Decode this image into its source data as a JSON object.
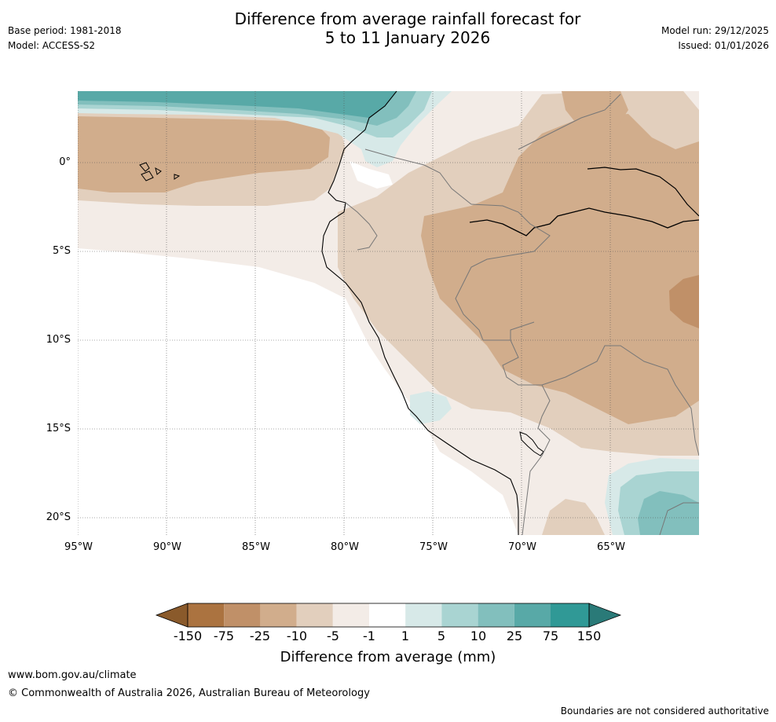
{
  "header": {
    "base_period": "Base period: 1981-2018",
    "model": "Model: ACCESS-S2",
    "title_line1": "Difference from average rainfall forecast for",
    "title_line2": "5 to 11 January 2026",
    "model_run": "Model run: 29/12/2025",
    "issued": "Issued: 01/01/2026"
  },
  "map": {
    "lat_labels": [
      "0°",
      "5°S",
      "10°S",
      "15°S",
      "20°S"
    ],
    "lon_labels": [
      "95°W",
      "90°W",
      "85°W",
      "80°W",
      "75°W",
      "70°W",
      "65°W"
    ]
  },
  "colorbar": {
    "title": "Difference from average (mm)",
    "tick_labels": [
      "-150",
      "-75",
      "-25",
      "-10",
      "-5",
      "-1",
      "1",
      "5",
      "10",
      "25",
      "75",
      "150"
    ],
    "colors": [
      "#8a5a2b",
      "#ab7340",
      "#c09068",
      "#d1ad8c",
      "#e2cfbd",
      "#f3ece7",
      "#ffffff",
      "#d7e9e8",
      "#a9d4d2",
      "#82bfbd",
      "#58a9a7",
      "#309996",
      "#2a7a78"
    ]
  },
  "footer": {
    "website": "www.bom.gov.au/climate",
    "copyright": "© Commonwealth of Australia 2026, Australian Bureau of Meteorology",
    "disclaimer": "Boundaries are not considered authoritative"
  }
}
